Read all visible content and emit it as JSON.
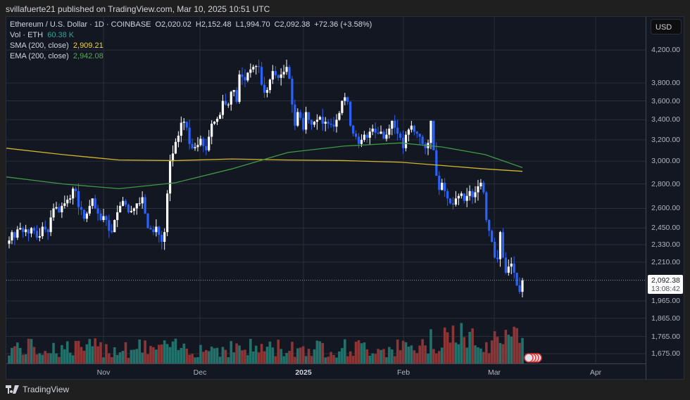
{
  "header": {
    "published": "svillafuerte21 published on TradingView.com, Mar 10, 2025 10:51 UTC"
  },
  "legend": {
    "symbol": "Ethereum / U.S. Dollar · 1D · COINBASE",
    "open": "O2,020.02",
    "high": "H2,152.48",
    "low": "L1,994.70",
    "close": "C2,092.38",
    "change": "+72.36 (+3.58%)",
    "vol_label": "Vol · ETH",
    "vol_value": "60.38 K",
    "sma_label": "SMA (200, close)",
    "sma_value": "2,909.21",
    "ema_label": "EMA (200, close)",
    "ema_value": "2,942.08"
  },
  "axis": {
    "currency": "USD",
    "price_ticks": [
      "4,200.00",
      "3,800.00",
      "3,600.00",
      "3,400.00",
      "3,200.00",
      "3,000.00",
      "2,800.00",
      "2,600.00",
      "2,450.00",
      "2,330.00",
      "2,210.00",
      "1,965.00",
      "1,865.00",
      "1,765.00",
      "1,675.00"
    ],
    "last_price": "2,092.38",
    "countdown": "13:08:42",
    "time_ticks": [
      "Nov",
      "Dec",
      "2025",
      "Feb",
      "Mar",
      "Apr"
    ]
  },
  "footer": {
    "brand": "TradingView"
  },
  "colors": {
    "up": "#ffffff",
    "down": "#2962ff",
    "vol_up": "#22716b",
    "vol_down": "#8e3536",
    "sma": "#d4b62a",
    "ema": "#3f9a44",
    "bg": "#131722"
  },
  "chart_data": {
    "type": "candlestick",
    "title": "Ethereum / U.S. Dollar · 1D · COINBASE",
    "ylabel": "USD",
    "yscale": "log",
    "ylim": [
      1620,
      4400
    ],
    "x_ticks": [
      "Nov",
      "Dec",
      "2025",
      "Feb",
      "Mar",
      "Apr"
    ],
    "closes": [
      2360,
      2420,
      2380,
      2440,
      2450,
      2420,
      2440,
      2410,
      2450,
      2430,
      2380,
      2390,
      2460,
      2440,
      2420,
      2530,
      2600,
      2610,
      2570,
      2620,
      2640,
      2670,
      2680,
      2760,
      2740,
      2610,
      2590,
      2520,
      2560,
      2620,
      2680,
      2600,
      2560,
      2510,
      2540,
      2510,
      2430,
      2420,
      2510,
      2570,
      2620,
      2660,
      2630,
      2570,
      2580,
      2600,
      2640,
      2640,
      2690,
      2560,
      2450,
      2440,
      2420,
      2460,
      2400,
      2350,
      2420,
      2720,
      3000,
      3070,
      3180,
      3240,
      3370,
      3380,
      3320,
      3160,
      3120,
      3130,
      3150,
      3210,
      3140,
      3100,
      3230,
      3360,
      3380,
      3410,
      3450,
      3600,
      3560,
      3560,
      3700,
      3720,
      3590,
      3900,
      3870,
      3830,
      3920,
      3960,
      3990,
      4000,
      3990,
      3780,
      3690,
      3720,
      3840,
      3940,
      3890,
      3860,
      3900,
      3930,
      3990,
      3850,
      3560,
      3340,
      3480,
      3420,
      3300,
      3480,
      3400,
      3350,
      3380,
      3400,
      3430,
      3360,
      3380,
      3360,
      3350,
      3330,
      3400,
      3470,
      3600,
      3640,
      3590,
      3340,
      3260,
      3230,
      3160,
      3200,
      3250,
      3220,
      3280,
      3310,
      3270,
      3260,
      3280,
      3210,
      3250,
      3310,
      3390,
      3320,
      3260,
      3220,
      3120,
      3250,
      3300,
      3340,
      3280,
      3260,
      3230,
      3160,
      3120,
      3170,
      3390,
      3100,
      2870,
      2750,
      2810,
      2740,
      2680,
      2640,
      2630,
      2680,
      2700,
      2720,
      2660,
      2700,
      2740,
      2690,
      2730,
      2780,
      2810,
      2730,
      2510,
      2430,
      2350,
      2240,
      2230,
      2420,
      2240,
      2140,
      2180,
      2200,
      2140,
      2060,
      2020,
      2092
    ],
    "sma_200_last": 2909.21,
    "ema_200_last": 2942.08,
    "last_volume": "60.38K ETH"
  }
}
